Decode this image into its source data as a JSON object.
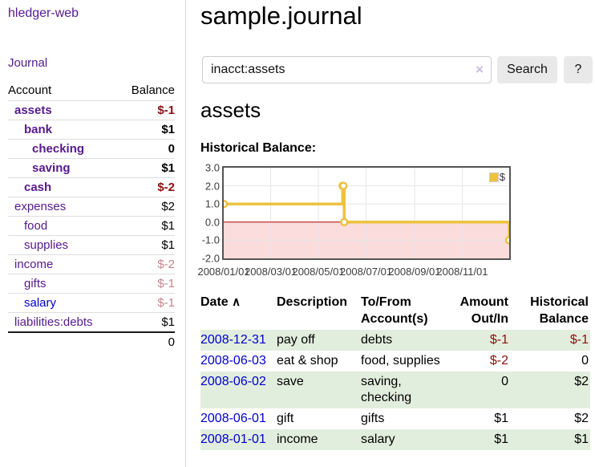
{
  "sidebar": {
    "app_title": "hledger-web",
    "nav": {
      "journal": "Journal"
    },
    "accounts_table": {
      "headers": {
        "account": "Account",
        "balance": "Balance"
      },
      "rows": [
        {
          "name": "assets",
          "balance": "$-1",
          "indent": 1,
          "bold": true,
          "balance_style": "neg"
        },
        {
          "name": "bank",
          "balance": "$1",
          "indent": 2,
          "bold": true,
          "balance_style": ""
        },
        {
          "name": "checking",
          "balance": "0",
          "indent": 3,
          "bold": true,
          "balance_style": ""
        },
        {
          "name": "saving",
          "balance": "$1",
          "indent": 3,
          "bold": true,
          "balance_style": ""
        },
        {
          "name": "cash",
          "balance": "$-2",
          "indent": 2,
          "bold": true,
          "balance_style": "neg"
        },
        {
          "name": "expenses",
          "balance": "$2",
          "indent": 1,
          "bold": false,
          "balance_style": ""
        },
        {
          "name": "food",
          "balance": "$1",
          "indent": 2,
          "bold": false,
          "balance_style": ""
        },
        {
          "name": "supplies",
          "balance": "$1",
          "indent": 2,
          "bold": false,
          "balance_style": ""
        },
        {
          "name": "income",
          "balance": "$-2",
          "indent": 1,
          "bold": false,
          "balance_style": "dimneg"
        },
        {
          "name": "gifts",
          "balance": "$-1",
          "indent": 2,
          "bold": false,
          "balance_style": "dimneg"
        },
        {
          "name": "salary",
          "balance": "$-1",
          "indent": 2,
          "bold": false,
          "balance_style": "dimneg",
          "link_blue": true
        },
        {
          "name": "liabilities:debts",
          "balance": "$1",
          "indent": 1,
          "bold": false,
          "balance_style": ""
        }
      ],
      "total": "0"
    }
  },
  "header": {
    "title": "sample.journal"
  },
  "search": {
    "value": "inacct:assets",
    "clear_icon": "×",
    "button": "Search",
    "help_button": "?"
  },
  "account_page": {
    "heading": "assets",
    "chart_label": "Historical Balance:"
  },
  "chart_data": {
    "type": "line",
    "title": "Historical Balance:",
    "step": true,
    "series": [
      {
        "name": "$",
        "color": "#edc240",
        "points": [
          [
            "2008-01-01",
            1
          ],
          [
            "2008-06-01",
            2
          ],
          [
            "2008-06-02",
            2
          ],
          [
            "2008-06-03",
            0
          ],
          [
            "2008-12-31",
            -1
          ]
        ]
      }
    ],
    "xlim": [
      "2008-01-01",
      "2008-12-31"
    ],
    "ylim": [
      -2,
      3
    ],
    "yticks": [
      "3.0",
      "2.0",
      "1.0",
      "0.0",
      "-1.0",
      "-2.0"
    ],
    "xticks": [
      "2008/01/01",
      "2008/03/01",
      "2008/05/01",
      "2008/07/01",
      "2008/09/01",
      "2008/11/01"
    ],
    "grid": true,
    "legend_position": "top-right",
    "negative_region_color": "#fadcdc",
    "zero_line_color": "#aa0000",
    "grid_color": "#e6e6e6"
  },
  "register_table": {
    "columns": [
      "Date",
      "Description",
      "To/From Account(s)",
      "Amount Out/In",
      "Historical Balance"
    ],
    "sort_icon": "∧",
    "rows": [
      {
        "date": "2008-12-31",
        "description": "pay off",
        "accounts": "debts",
        "amount": "$-1",
        "balance": "$-1",
        "amount_neg": true,
        "balance_neg": true
      },
      {
        "date": "2008-06-03",
        "description": "eat & shop",
        "accounts": "food, supplies",
        "amount": "$-2",
        "balance": "0",
        "amount_neg": true,
        "balance_neg": false
      },
      {
        "date": "2008-06-02",
        "description": "save",
        "accounts": "saving, checking",
        "amount": "0",
        "balance": "$2",
        "amount_neg": false,
        "balance_neg": false
      },
      {
        "date": "2008-06-01",
        "description": "gift",
        "accounts": "gifts",
        "amount": "$1",
        "balance": "$2",
        "amount_neg": false,
        "balance_neg": false
      },
      {
        "date": "2008-01-01",
        "description": "income",
        "accounts": "salary",
        "amount": "$1",
        "balance": "$1",
        "amount_neg": false,
        "balance_neg": false
      }
    ]
  }
}
